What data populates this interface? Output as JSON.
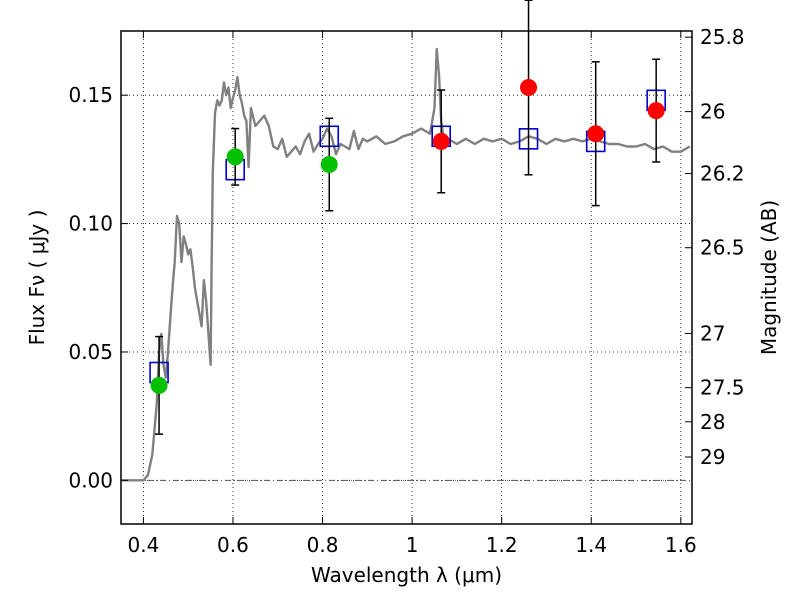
{
  "chart_data": {
    "type": "scatter",
    "xlabel": "Wavelength  λ (μm)",
    "ylabel": "Flux  Fν  ( μJy )",
    "ylabel_right": "Magnitude (AB)",
    "xlim": [
      0.35,
      1.625
    ],
    "ylim": [
      -0.017,
      0.175
    ],
    "grid": true,
    "x_ticks": [
      0.4,
      0.6,
      0.8,
      1.0,
      1.2,
      1.4,
      1.6
    ],
    "x_tick_labels": [
      "0.4",
      "0.6",
      "0.8",
      "1",
      "1.2",
      "1.4",
      "1.6"
    ],
    "y_ticks": [
      0.0,
      0.05,
      0.1,
      0.15
    ],
    "y_tick_labels": [
      "0.00",
      "0.05",
      "0.10",
      "0.15"
    ],
    "right_ticks": [
      {
        "label": "25.8",
        "flux": 0.1726
      },
      {
        "label": "26",
        "flux": 0.1436
      },
      {
        "label": "26.2",
        "flux": 0.1195
      },
      {
        "label": "26.5",
        "flux": 0.0906
      },
      {
        "label": "27",
        "flux": 0.0572
      },
      {
        "label": "27.5",
        "flux": 0.0361
      },
      {
        "label": "28",
        "flux": 0.0228
      },
      {
        "label": "29",
        "flux": 0.0091
      }
    ],
    "series": [
      {
        "kind": "model_spectrum",
        "color": "#808080",
        "x": [
          0.35,
          0.4,
          0.41,
          0.42,
          0.43,
          0.435,
          0.44,
          0.445,
          0.45,
          0.455,
          0.46,
          0.465,
          0.47,
          0.475,
          0.48,
          0.485,
          0.49,
          0.495,
          0.5,
          0.505,
          0.51,
          0.515,
          0.52,
          0.525,
          0.53,
          0.535,
          0.54,
          0.545,
          0.55,
          0.552,
          0.555,
          0.56,
          0.565,
          0.57,
          0.575,
          0.58,
          0.585,
          0.59,
          0.595,
          0.6,
          0.605,
          0.61,
          0.615,
          0.62,
          0.625,
          0.63,
          0.635,
          0.64,
          0.65,
          0.66,
          0.67,
          0.68,
          0.69,
          0.7,
          0.71,
          0.72,
          0.73,
          0.74,
          0.75,
          0.76,
          0.77,
          0.78,
          0.79,
          0.8,
          0.81,
          0.82,
          0.83,
          0.84,
          0.85,
          0.86,
          0.87,
          0.88,
          0.89,
          0.9,
          0.92,
          0.94,
          0.96,
          0.98,
          1.0,
          1.02,
          1.04,
          1.05,
          1.055,
          1.06,
          1.065,
          1.07,
          1.08,
          1.1,
          1.12,
          1.14,
          1.16,
          1.18,
          1.2,
          1.22,
          1.24,
          1.26,
          1.28,
          1.3,
          1.32,
          1.34,
          1.36,
          1.38,
          1.4,
          1.42,
          1.44,
          1.46,
          1.48,
          1.5,
          1.52,
          1.54,
          1.56,
          1.58,
          1.6,
          1.62
        ],
        "y": [
          0.0,
          0.0,
          0.002,
          0.01,
          0.03,
          0.05,
          0.057,
          0.045,
          0.04,
          0.05,
          0.063,
          0.075,
          0.085,
          0.103,
          0.1,
          0.085,
          0.095,
          0.092,
          0.088,
          0.09,
          0.083,
          0.075,
          0.07,
          0.065,
          0.06,
          0.078,
          0.07,
          0.058,
          0.045,
          0.08,
          0.12,
          0.143,
          0.148,
          0.146,
          0.148,
          0.155,
          0.15,
          0.153,
          0.145,
          0.149,
          0.152,
          0.157,
          0.15,
          0.147,
          0.142,
          0.14,
          0.122,
          0.145,
          0.138,
          0.14,
          0.142,
          0.138,
          0.13,
          0.129,
          0.133,
          0.126,
          0.128,
          0.13,
          0.127,
          0.132,
          0.135,
          0.128,
          0.131,
          0.133,
          0.137,
          0.134,
          0.127,
          0.131,
          0.13,
          0.129,
          0.136,
          0.129,
          0.133,
          0.132,
          0.134,
          0.131,
          0.132,
          0.134,
          0.135,
          0.137,
          0.135,
          0.145,
          0.168,
          0.158,
          0.14,
          0.134,
          0.133,
          0.131,
          0.133,
          0.131,
          0.133,
          0.132,
          0.133,
          0.131,
          0.132,
          0.134,
          0.133,
          0.131,
          0.133,
          0.132,
          0.133,
          0.132,
          0.133,
          0.132,
          0.131,
          0.131,
          0.13,
          0.13,
          0.131,
          0.129,
          0.13,
          0.128,
          0.128,
          0.13
        ]
      },
      {
        "kind": "model_photometry",
        "color": "#0000cc",
        "x": [
          0.435,
          0.605,
          0.815,
          1.065,
          1.26,
          1.41,
          1.545
        ],
        "y": [
          0.042,
          0.121,
          0.134,
          0.134,
          0.133,
          0.132,
          0.148
        ]
      },
      {
        "kind": "observed_optical",
        "color": "#00c000",
        "x": [
          0.435,
          0.605,
          0.815
        ],
        "y": [
          0.037,
          0.126,
          0.123
        ],
        "yerr": [
          0.019,
          0.011,
          0.018
        ]
      },
      {
        "kind": "observed_nir",
        "color": "#ff0000",
        "x": [
          1.065,
          1.26,
          1.41,
          1.545
        ],
        "y": [
          0.132,
          0.153,
          0.135,
          0.144
        ],
        "yerr": [
          0.02,
          0.034,
          0.028,
          0.02
        ]
      }
    ]
  }
}
